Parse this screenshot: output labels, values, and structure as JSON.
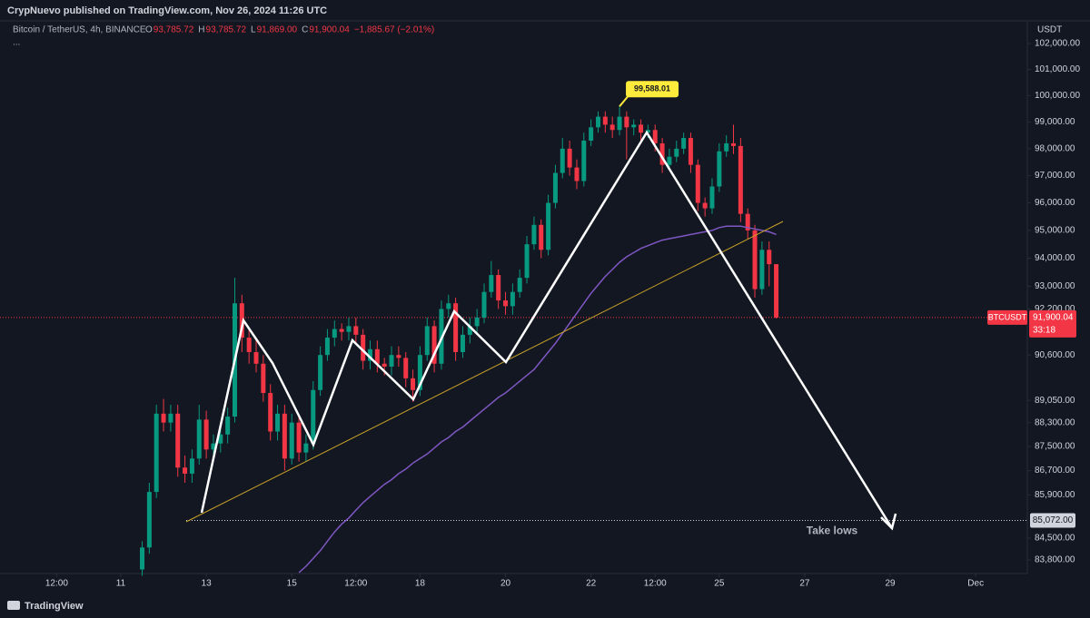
{
  "header": {
    "published": "CrypNuevo published on TradingView.com, Nov 26, 2024 11:26 UTC",
    "symbol": "Bitcoin / TetherUS, 4h, BINANCE",
    "ohlc": [
      {
        "key": "O",
        "value": "93,785.72"
      },
      {
        "key": "H",
        "value": "93,785.72"
      },
      {
        "key": "L",
        "value": "91,869.00"
      },
      {
        "key": "C",
        "value": "91,900.04"
      }
    ],
    "change": "−1,885.67 (−2.01%)",
    "more": "...",
    "currency": "USDT"
  },
  "footer": {
    "brand": "TradingView"
  },
  "chart_data": {
    "type": "candlestick",
    "log_scale": true,
    "grid": false,
    "up_color": "#089981",
    "down_color": "#f23645",
    "x": [
      11.5,
      11.667,
      11.833,
      12,
      12.167,
      12.333,
      12.5,
      12.667,
      12.833,
      13,
      13.167,
      13.333,
      13.5,
      13.667,
      13.833,
      14,
      14.167,
      14.333,
      14.5,
      14.667,
      14.833,
      15,
      15.167,
      15.333,
      15.5,
      15.667,
      15.833,
      16,
      16.167,
      16.333,
      16.5,
      16.667,
      16.833,
      17,
      17.167,
      17.333,
      17.5,
      17.667,
      17.833,
      18,
      18.167,
      18.333,
      18.5,
      18.667,
      18.833,
      19,
      19.167,
      19.333,
      19.5,
      19.667,
      19.833,
      20,
      20.167,
      20.333,
      20.5,
      20.667,
      20.833,
      21,
      21.167,
      21.333,
      21.5,
      21.667,
      21.833,
      22,
      22.167,
      22.333,
      22.5,
      22.667,
      22.833,
      23,
      23.167,
      23.333,
      23.5,
      23.667,
      23.833,
      24,
      24.167,
      24.333,
      24.5,
      24.667,
      24.833,
      25,
      25.167,
      25.333,
      25.5,
      25.667,
      25.833,
      26,
      26.167,
      26.333
    ],
    "open": [
      83500,
      84200,
      86000,
      88600,
      88300,
      88600,
      86800,
      86600,
      87100,
      88400,
      87400,
      87600,
      87900,
      88500,
      92400,
      91200,
      90700,
      90300,
      89300,
      88000,
      88600,
      87100,
      88300,
      87300,
      87600,
      89400,
      90600,
      91200,
      91500,
      91400,
      91600,
      91300,
      90400,
      90800,
      90300,
      90200,
      90600,
      90500,
      89800,
      89400,
      90600,
      91600,
      90300,
      92200,
      92400,
      90700,
      91300,
      91600,
      91900,
      92800,
      93400,
      92500,
      92300,
      92800,
      93300,
      94500,
      95200,
      94300,
      96000,
      97100,
      98000,
      97300,
      96800,
      98300,
      98800,
      99200,
      98900,
      98700,
      99200,
      98800,
      98900,
      98600,
      98700,
      98200,
      97400,
      97700,
      98000,
      98400,
      97400,
      96000,
      95800,
      96600,
      97900,
      98200,
      98100,
      95600,
      95000,
      92900,
      94300,
      93785.72
    ],
    "high": [
      84400,
      86300,
      88900,
      89100,
      88900,
      88900,
      87200,
      87400,
      88900,
      88700,
      87900,
      88200,
      88800,
      93300,
      92700,
      91500,
      91100,
      90600,
      89600,
      88900,
      88900,
      88600,
      88600,
      87900,
      89700,
      90900,
      91500,
      91800,
      91700,
      91900,
      91900,
      91500,
      91100,
      91100,
      90500,
      90900,
      90900,
      90700,
      90100,
      90900,
      91900,
      91800,
      92500,
      92700,
      92600,
      91600,
      91900,
      92200,
      93100,
      93900,
      93600,
      92800,
      93100,
      93600,
      94800,
      95500,
      95400,
      96300,
      97400,
      98400,
      98300,
      97600,
      98600,
      99100,
      99400,
      99400,
      99200,
      99588.01,
      99400,
      99100,
      99100,
      98900,
      98900,
      98400,
      98000,
      98300,
      98600,
      98600,
      97600,
      96200,
      96900,
      98200,
      98500,
      98900,
      98400,
      95800,
      95200,
      94600,
      94600,
      93785.72
    ],
    "low": [
      83300,
      84000,
      85800,
      88000,
      88000,
      86500,
      86300,
      86300,
      86900,
      87100,
      87100,
      87300,
      87600,
      88300,
      90700,
      90300,
      90000,
      89000,
      87700,
      87700,
      86700,
      86900,
      87000,
      87000,
      87400,
      89200,
      90400,
      90900,
      91100,
      91100,
      91000,
      90100,
      90100,
      90000,
      89900,
      89900,
      90200,
      89500,
      89000,
      89200,
      90400,
      90000,
      90100,
      91900,
      90400,
      90500,
      91000,
      91300,
      91700,
      92600,
      92200,
      92000,
      92000,
      92600,
      93100,
      94300,
      94000,
      94100,
      95800,
      96900,
      97000,
      96500,
      96600,
      98100,
      98600,
      98600,
      98400,
      98500,
      97600,
      98500,
      98300,
      98400,
      97900,
      97100,
      97200,
      97500,
      97800,
      97100,
      95700,
      95500,
      95600,
      96400,
      97700,
      97800,
      95300,
      94700,
      92600,
      92700,
      93000,
      91869
    ],
    "close": [
      84200,
      86000,
      88600,
      88300,
      88600,
      86800,
      86600,
      87100,
      88400,
      87400,
      87600,
      87900,
      88500,
      92400,
      91200,
      90700,
      90300,
      89300,
      88000,
      88600,
      87100,
      88300,
      87300,
      87600,
      89400,
      90600,
      91200,
      91500,
      91400,
      91600,
      91300,
      90400,
      90800,
      90300,
      90200,
      90600,
      90500,
      89800,
      89400,
      90600,
      91600,
      90300,
      92200,
      92400,
      90700,
      91300,
      91600,
      91900,
      92800,
      93400,
      92500,
      92300,
      92800,
      93300,
      94500,
      95200,
      94300,
      96000,
      97100,
      98000,
      97300,
      96800,
      98300,
      98800,
      99200,
      98900,
      98700,
      99200,
      98800,
      98900,
      98600,
      98700,
      98200,
      97400,
      97700,
      98000,
      98400,
      97400,
      96000,
      95800,
      96600,
      97900,
      98200,
      98100,
      95600,
      95000,
      92900,
      94300,
      93785.72,
      91900.04
    ],
    "ma": {
      "color": "#7e57c2",
      "values": [
        null,
        null,
        null,
        null,
        null,
        null,
        null,
        null,
        null,
        null,
        null,
        null,
        null,
        null,
        null,
        null,
        null,
        null,
        null,
        null,
        null,
        null,
        83400,
        83600,
        83850,
        84100,
        84400,
        84700,
        84950,
        85150,
        85400,
        85650,
        85850,
        86050,
        86250,
        86400,
        86600,
        86750,
        86950,
        87100,
        87250,
        87450,
        87650,
        87800,
        88000,
        88150,
        88350,
        88550,
        88750,
        88950,
        89150,
        89300,
        89500,
        89700,
        89900,
        90100,
        90400,
        90700,
        91000,
        91350,
        91700,
        92050,
        92400,
        92750,
        93050,
        93350,
        93600,
        93850,
        94050,
        94200,
        94350,
        94450,
        94550,
        94650,
        94700,
        94750,
        94800,
        94850,
        94900,
        94950,
        95000,
        95100,
        95150,
        95150,
        95150,
        95100,
        95050,
        95000,
        94950,
        94850
      ]
    },
    "xlim": [
      8.174,
      32.186
    ],
    "ylim": [
      83370,
      102920
    ],
    "xticks": [
      {
        "value": 9.5,
        "label": "12:00"
      },
      11,
      13,
      15,
      {
        "value": 16.5,
        "label": "12:00"
      },
      18,
      20,
      22,
      {
        "value": 23.5,
        "label": "12:00"
      },
      25,
      27,
      29,
      {
        "value": 31,
        "label": "Dec"
      }
    ],
    "yticks": [
      {
        "value": 102000,
        "label": "102,000.00"
      },
      {
        "value": 101000,
        "label": "101,000.00"
      },
      {
        "value": 100000,
        "label": "100,000.00"
      },
      {
        "value": 99000,
        "label": "99,000.00"
      },
      {
        "value": 98000,
        "label": "98,000.00"
      },
      {
        "value": 97000,
        "label": "97,000.00"
      },
      {
        "value": 96000,
        "label": "96,000.00"
      },
      {
        "value": 95000,
        "label": "95,000.00"
      },
      {
        "value": 94000,
        "label": "94,000.00"
      },
      {
        "value": 93000,
        "label": "93,000.00"
      },
      {
        "value": 92200,
        "label": "92,200.00"
      },
      {
        "value": 90600,
        "label": "90,600.00"
      },
      {
        "value": 89050,
        "label": "89,050.00"
      },
      {
        "value": 88300,
        "label": "88,300.00"
      },
      {
        "value": 87500,
        "label": "87,500.00"
      },
      {
        "value": 86700,
        "label": "86,700.00"
      },
      {
        "value": 85900,
        "label": "85,900.00"
      },
      {
        "value": 84500,
        "label": "84,500.00"
      },
      {
        "value": 83800,
        "label": "83,800.00"
      }
    ],
    "last_price": {
      "value": 91900.04,
      "label": "91,900.04",
      "ticker": "BTCUSDT",
      "countdown": "33:18"
    },
    "high_marker": {
      "value": 99588.01,
      "label": "99,588.01"
    },
    "target_line": {
      "value": 85072,
      "label": "85,072.00"
    },
    "annotation": "Take lows"
  }
}
